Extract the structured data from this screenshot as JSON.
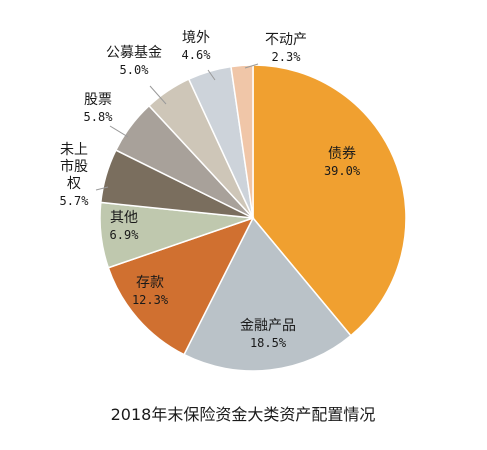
{
  "chart_data": {
    "type": "pie",
    "title": "2018年末保险资金大类资产配置情况",
    "slices": [
      {
        "label": "债券",
        "display_value": "39.0%",
        "value": 39.0,
        "color": "#F0A030"
      },
      {
        "label": "金融产品",
        "display_value": "18.5%",
        "value": 18.5,
        "color": "#BAC2C8"
      },
      {
        "label": "存款",
        "display_value": "12.3%",
        "value": 12.3,
        "color": "#D07030"
      },
      {
        "label": "其他",
        "display_value": "6.9%",
        "value": 6.9,
        "color": "#BFC8AE"
      },
      {
        "label": "未上市股权",
        "label_lines": [
          "未上",
          "市股",
          "权"
        ],
        "display_value": "5.7%",
        "value": 5.7,
        "color": "#7A6E5E"
      },
      {
        "label": "股票",
        "display_value": "5.8%",
        "value": 5.8,
        "color": "#A8A19A"
      },
      {
        "label": "公募基金",
        "display_value": "5.0%",
        "value": 5.0,
        "color": "#CEC6B8"
      },
      {
        "label": "境外",
        "display_value": "4.6%",
        "value": 4.6,
        "color": "#CDD3DA"
      },
      {
        "label": "不动产",
        "display_value": "2.3%",
        "value": 2.3,
        "color": "#F0C6A8"
      }
    ]
  }
}
